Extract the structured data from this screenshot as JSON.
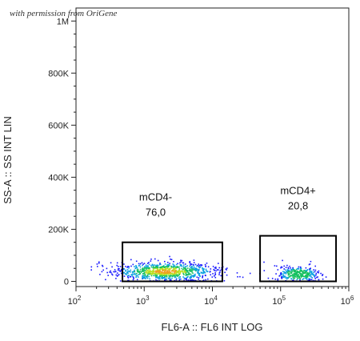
{
  "watermark": "with permission from OriGene",
  "chart_data": {
    "type": "scatter",
    "xlabel": "FL6-A :: FL6 INT LOG",
    "ylabel": "SS-A :: SS INT LIN",
    "x_scale": "log",
    "xlim": [
      100,
      1000000
    ],
    "x_ticks": [
      {
        "value": 100,
        "base": "10",
        "exp": "2"
      },
      {
        "value": 1000,
        "base": "10",
        "exp": "3"
      },
      {
        "value": 10000,
        "base": "10",
        "exp": "4"
      },
      {
        "value": 100000,
        "base": "10",
        "exp": "5"
      },
      {
        "value": 1000000,
        "base": "10",
        "exp": "6"
      }
    ],
    "ylim": [
      -20000,
      1050000
    ],
    "y_ticks": [
      {
        "value": 0,
        "label": "0"
      },
      {
        "value": 200000,
        "label": "200K"
      },
      {
        "value": 400000,
        "label": "400K"
      },
      {
        "value": 600000,
        "label": "600K"
      },
      {
        "value": 800000,
        "label": "800K"
      },
      {
        "value": 1000000,
        "label": "1M"
      }
    ],
    "gates": [
      {
        "name": "mCD4-",
        "percent": "76,0",
        "x_range": [
          480,
          14000
        ],
        "y_range": [
          0,
          150000
        ]
      },
      {
        "name": "mCD4+",
        "percent": "20,8",
        "x_range": [
          50000,
          650000
        ],
        "y_range": [
          0,
          175000
        ]
      }
    ],
    "populations": [
      {
        "name": "mCD4- cells",
        "log_x_center": 3.3,
        "log_x_spread": 0.38,
        "y_center": 40000,
        "y_spread": 18000,
        "count": 900
      },
      {
        "name": "mCD4+ cells",
        "log_x_center": 5.25,
        "log_x_spread": 0.15,
        "y_center": 30000,
        "y_spread": 15000,
        "count": 320
      }
    ],
    "density_colors": [
      "#1a1aff",
      "#0aa0e0",
      "#15c060",
      "#b8e020",
      "#f0a020"
    ]
  }
}
